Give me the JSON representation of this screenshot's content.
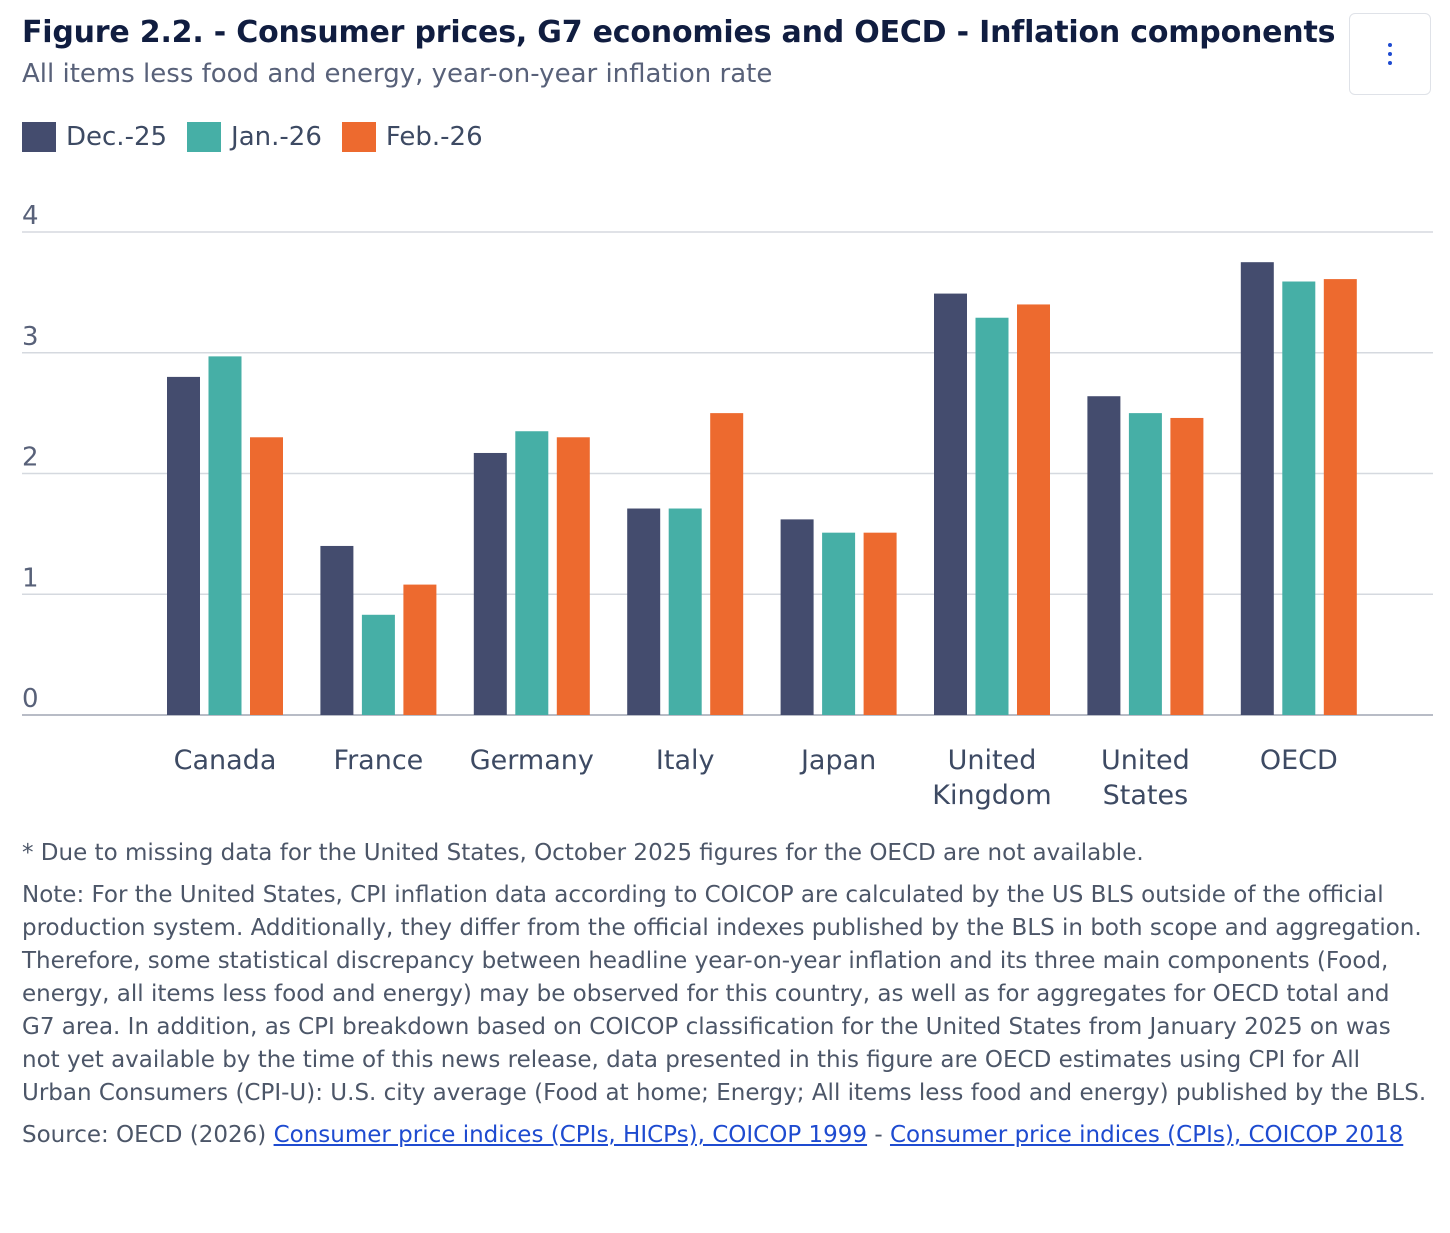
{
  "header": {
    "title": "Figure 2.2. - Consumer prices, G7 economies and OECD - Inflation components",
    "subtitle": "All items less food and energy, year-on-year inflation rate",
    "menu_icon": "vertical-ellipsis-icon"
  },
  "colors": {
    "dec": "#444c6e",
    "jan": "#46afa6",
    "feb": "#ed6a2f",
    "grid": "#d5d9df",
    "axis": "#b8bcc6"
  },
  "chart_data": {
    "type": "bar",
    "categories": [
      "Canada",
      "France",
      "Germany",
      "Italy",
      "Japan",
      "United Kingdom",
      "United States",
      "OECD"
    ],
    "category_lines": [
      [
        "Canada"
      ],
      [
        "France"
      ],
      [
        "Germany"
      ],
      [
        "Italy"
      ],
      [
        "Japan"
      ],
      [
        "United",
        "Kingdom"
      ],
      [
        "United",
        "States"
      ],
      [
        "OECD"
      ]
    ],
    "series": [
      {
        "name": "Dec.-25",
        "color": "#444c6e",
        "values": [
          2.8,
          1.4,
          2.17,
          1.71,
          1.62,
          3.49,
          2.64,
          3.75
        ]
      },
      {
        "name": "Jan.-26",
        "color": "#46afa6",
        "values": [
          2.97,
          0.83,
          2.35,
          1.71,
          1.51,
          3.29,
          2.5,
          3.59
        ]
      },
      {
        "name": "Feb.-26",
        "color": "#ed6a2f",
        "values": [
          2.3,
          1.08,
          2.3,
          2.5,
          1.51,
          3.4,
          2.46,
          3.61
        ]
      }
    ],
    "yticks": [
      "0",
      "1",
      "2",
      "3",
      "4"
    ],
    "ylim": [
      0,
      4
    ],
    "grid": true,
    "legend_position": "top-left",
    "xlabel": "",
    "ylabel": ""
  },
  "footnotes": {
    "missing": "* Due to missing data for the United States, October 2025 figures for the OECD are not available.",
    "note": "Note: For the United States, CPI inflation data according to COICOP are calculated by the US BLS outside of the official production system. Additionally, they differ from the official indexes published by the BLS in both scope and aggregation. Therefore, some statistical discrepancy between headline year-on-year inflation and its three main components (Food, energy, all items less food and energy) may be observed for this country, as well as for aggregates for OECD total and G7 area. In addition, as CPI breakdown based on COICOP classification for the United States from January 2025 on was not yet available by the time of this news release, data presented in this figure are OECD estimates using CPI for All Urban Consumers (CPI-U): U.S. city average (Food at home; Energy; All items less food and energy) published by the BLS.",
    "source_prefix": "Source: OECD (2026) ",
    "source_link1": "Consumer price indices (CPIs, HICPs), COICOP 1999",
    "source_sep": " - ",
    "source_link2": "Consumer price indices (CPIs), COICOP 2018"
  }
}
